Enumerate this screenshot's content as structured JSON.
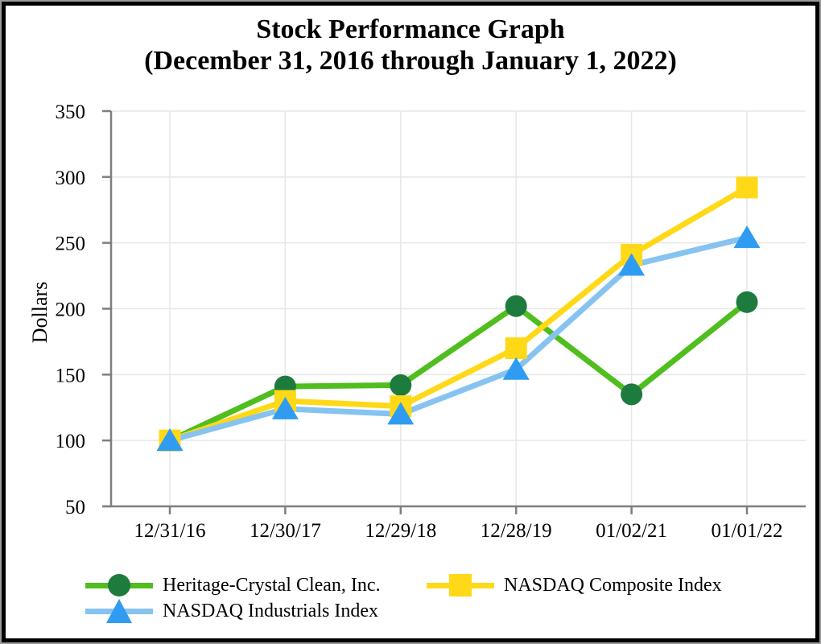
{
  "title": {
    "line1": "Stock Performance Graph",
    "line2": "(December 31, 2016 through January 1, 2022)"
  },
  "chart_data": {
    "type": "line",
    "title": "Stock Performance Graph (December 31, 2016 through January 1, 2022)",
    "xlabel": "",
    "ylabel": "Dollars",
    "ylim": [
      50,
      350
    ],
    "y_ticks": [
      50,
      100,
      150,
      200,
      250,
      300,
      350
    ],
    "grid": true,
    "legend_position": "bottom",
    "categories": [
      "12/31/16",
      "12/30/17",
      "12/29/18",
      "12/28/19",
      "01/02/21",
      "01/01/22"
    ],
    "series": [
      {
        "name": "Heritage-Crystal Clean, Inc.",
        "marker": "circle",
        "line_color": "#4FBE1E",
        "marker_color": "#1E7B3E",
        "values": [
          100,
          141,
          142,
          202,
          135,
          205
        ]
      },
      {
        "name": "NASDAQ Composite Index",
        "marker": "square",
        "line_color": "#FFD918",
        "marker_color": "#FFD918",
        "values": [
          100,
          130,
          126,
          170,
          241,
          292
        ]
      },
      {
        "name": "NASDAQ Industrials Index",
        "marker": "triangle",
        "line_color": "#87C3F1",
        "marker_color": "#2F9CF1",
        "values": [
          100,
          124,
          120,
          154,
          233,
          254
        ]
      }
    ]
  },
  "colors": {
    "gridline": "#E7E7E7",
    "axis": "#7F7F7F",
    "tick_label": "#000000",
    "frame": "#000000",
    "background": "#FFFFFF"
  }
}
